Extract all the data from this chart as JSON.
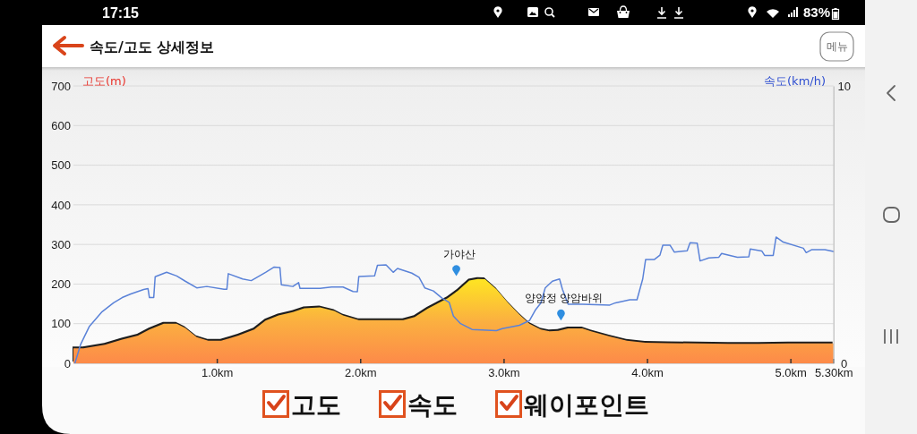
{
  "chart_data": {
    "type": "area",
    "title": "속도/고도 상세정보",
    "ylabel": "고도(m)",
    "y2label": "속도(km/h)",
    "xlim": [
      0,
      5.3
    ],
    "xticks": [
      {
        "value": 1,
        "label": "1.0km"
      },
      {
        "value": 2,
        "label": "2.0km"
      },
      {
        "value": 3,
        "label": "3.0km"
      },
      {
        "value": 4,
        "label": "4.0km"
      },
      {
        "value": 5,
        "label": "5.0km"
      },
      {
        "value": 5.3,
        "label": "5.30km"
      }
    ],
    "ylim": [
      0,
      700
    ],
    "yticks": [
      0,
      100,
      200,
      300,
      400,
      500,
      600,
      700
    ],
    "y2lim": [
      0,
      10
    ],
    "y2ticks": [
      0,
      10
    ],
    "grid": "y",
    "series": [
      {
        "color": "#fbb040",
        "x": [
          0,
          0.07,
          0.22,
          0.34,
          0.45,
          0.53,
          0.63,
          0.72,
          0.78,
          0.86,
          0.94,
          1.03,
          1.15,
          1.26,
          1.34,
          1.43,
          1.53,
          1.61,
          1.72,
          1.82,
          1.88,
          1.99,
          2.09,
          2.3,
          2.38,
          2.47,
          2.55,
          2.61,
          2.68,
          2.76,
          2.82,
          2.87,
          2.95,
          3.03,
          3.11,
          3.18,
          3.26,
          3.32,
          3.38,
          3.45,
          3.55,
          3.61,
          3.74,
          3.86,
          3.99,
          4.15,
          4.57,
          4.78,
          4.99,
          5.3
        ],
        "values": [
          38,
          38,
          47,
          60,
          70,
          85,
          100,
          100,
          89,
          66,
          57,
          57,
          70,
          85,
          108,
          121,
          129,
          139,
          141,
          132,
          121,
          109,
          109,
          109,
          117,
          138,
          153,
          164,
          183,
          209,
          213,
          212,
          187,
          153,
          123,
          100,
          85,
          81,
          82,
          88,
          88,
          81,
          68,
          57,
          52,
          51,
          49,
          49,
          50,
          50
        ]
      },
      {
        "type": "line",
        "axis": "y2",
        "color": "#5a82d8",
        "x": [
          0.01,
          0.05,
          0.11,
          0.2,
          0.28,
          0.34,
          0.4,
          0.49,
          0.52,
          0.53,
          0.56,
          0.57,
          0.65,
          0.72,
          0.78,
          0.86,
          0.93,
          1.05,
          1.07,
          1.08,
          1.18,
          1.24,
          1.34,
          1.4,
          1.44,
          1.45,
          1.53,
          1.57,
          1.58,
          1.72,
          1.8,
          1.88,
          1.95,
          1.98,
          1.99,
          2.1,
          2.12,
          2.18,
          2.23,
          2.26,
          2.36,
          2.41,
          2.45,
          2.51,
          2.57,
          2.62,
          2.65,
          2.7,
          2.78,
          2.95,
          2.99,
          3.11,
          3.18,
          3.22,
          3.26,
          3.29,
          3.34,
          3.39,
          3.41,
          3.45,
          3.55,
          3.74,
          3.78,
          3.88,
          3.93,
          3.97,
          3.99,
          4.05,
          4.09,
          4.11,
          4.16,
          4.19,
          4.28,
          4.3,
          4.35,
          4.37,
          4.43,
          4.5,
          4.52,
          4.63,
          4.71,
          4.72,
          4.8,
          4.82,
          4.88,
          4.9,
          4.95,
          5.09,
          5.11,
          5.15,
          5.24,
          5.3
        ],
        "values": [
          0,
          0.68,
          1.32,
          1.86,
          2.18,
          2.37,
          2.5,
          2.66,
          2.69,
          2.37,
          2.37,
          3.12,
          3.28,
          3.15,
          2.96,
          2.72,
          2.77,
          2.67,
          2.67,
          3.23,
          3.04,
          2.98,
          3.28,
          3.47,
          3.45,
          2.83,
          2.77,
          2.91,
          2.7,
          2.7,
          2.75,
          2.75,
          2.59,
          2.58,
          3.13,
          3.15,
          3.53,
          3.55,
          3.28,
          3.42,
          3.25,
          3.1,
          2.72,
          2.61,
          2.35,
          2.2,
          1.7,
          1.43,
          1.22,
          1.18,
          1.25,
          1.37,
          1.54,
          1.91,
          2.18,
          2.72,
          2.96,
          3.04,
          2.67,
          2.13,
          2.13,
          2.1,
          2.18,
          2.29,
          2.29,
          3.04,
          3.74,
          3.74,
          3.9,
          4.26,
          4.26,
          4.01,
          4.06,
          4.35,
          4.33,
          3.69,
          3.8,
          3.82,
          3.96,
          3.82,
          3.84,
          4.12,
          4.05,
          3.89,
          3.89,
          4.55,
          4.37,
          4.15,
          3.99,
          4.1,
          4.1,
          4.03
        ]
      },
      {
        "type": "scatter",
        "color": "#2f8ee0",
        "x": [
          2.67,
          3.4
        ],
        "values": [
          234,
          122
        ]
      }
    ],
    "annotations": [
      {
        "text": "가야산",
        "x": 2.67,
        "y": 234
      },
      {
        "text": "양암정 양암바위",
        "x": 3.4,
        "y": 122
      },
      "메뉴",
      "17:15",
      "83%",
      "고도",
      "속도",
      "웨이포인트"
    ]
  }
}
